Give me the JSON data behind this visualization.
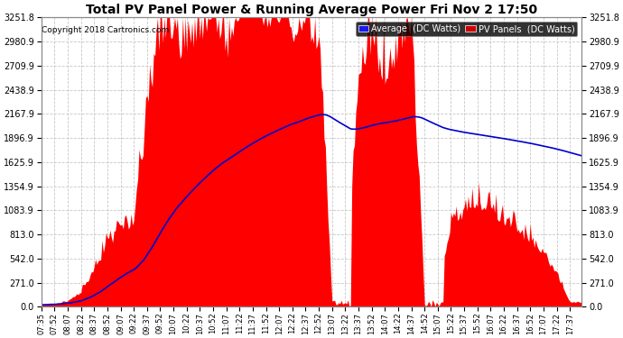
{
  "title": "Total PV Panel Power & Running Average Power Fri Nov 2 17:50",
  "copyright": "Copyright 2018 Cartronics.com",
  "background_color": "#ffffff",
  "plot_bg_color": "#ffffff",
  "grid_color": "#c8c8c8",
  "yticks": [
    0.0,
    271.0,
    542.0,
    813.0,
    1083.9,
    1354.9,
    1625.9,
    1896.9,
    2167.9,
    2438.9,
    2709.9,
    2980.9,
    3251.8
  ],
  "ymax": 3251.8,
  "legend_avg_label": "Average  (DC Watts)",
  "legend_pv_label": "PV Panels  (DC Watts)",
  "fill_color": "#ff0000",
  "line_color": "#0000cd",
  "xtick_labels": [
    "07:35",
    "07:52",
    "08:07",
    "08:22",
    "08:37",
    "08:52",
    "09:07",
    "09:22",
    "09:37",
    "09:52",
    "10:07",
    "10:22",
    "10:37",
    "10:52",
    "11:07",
    "11:22",
    "11:37",
    "11:52",
    "12:07",
    "12:22",
    "12:37",
    "12:52",
    "13:07",
    "13:22",
    "13:37",
    "13:52",
    "14:07",
    "14:22",
    "14:37",
    "14:52",
    "15:07",
    "15:22",
    "15:37",
    "15:52",
    "16:07",
    "16:22",
    "16:37",
    "16:52",
    "17:07",
    "17:22",
    "17:37"
  ]
}
